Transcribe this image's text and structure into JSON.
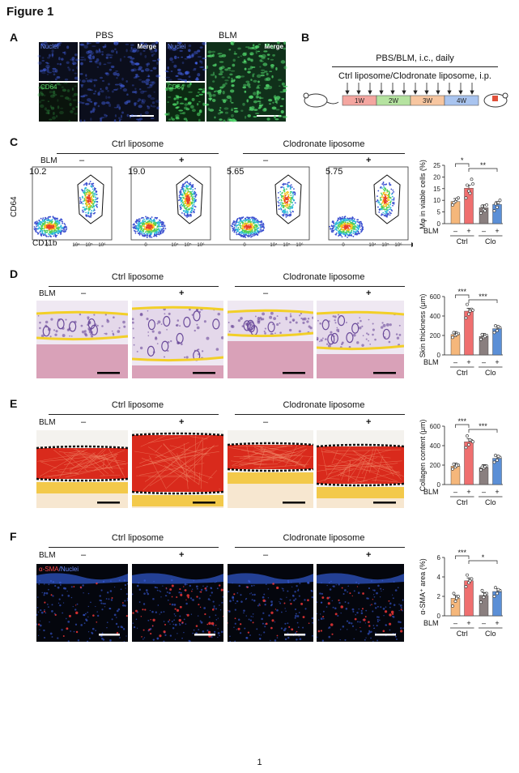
{
  "figure_title": "Figure 1",
  "panels": {
    "A": {
      "label": "A",
      "pbs": "PBS",
      "blm": "BLM",
      "nuclei": "Nuclei",
      "cd64": "CD64",
      "merge": "Merge"
    },
    "B": {
      "label": "B",
      "line1": "PBS/BLM, i.c., daily",
      "line2": "Ctrl liposome/Clodronate liposome, i.p.",
      "weeks": [
        "1W",
        "2W",
        "3W",
        "4W"
      ],
      "week_colors": [
        "#f4a6a0",
        "#b5e3a0",
        "#f7c6a0",
        "#a9c4ef"
      ]
    },
    "C": {
      "label": "C",
      "ctrl": "Ctrl liposome",
      "clo": "Clodronate liposome",
      "blm": "BLM",
      "signs": [
        "–",
        "+",
        "–",
        "+"
      ],
      "gate_values": [
        "10.2",
        "19.0",
        "5.65",
        "5.75"
      ],
      "ylabel": "CD64",
      "xlabel": "CD11b"
    },
    "D": {
      "label": "D",
      "ctrl": "Ctrl liposome",
      "clo": "Clodronate liposome",
      "blm": "BLM",
      "signs": [
        "–",
        "+",
        "–",
        "+"
      ]
    },
    "E": {
      "label": "E",
      "ctrl": "Ctrl liposome",
      "clo": "Clodronate liposome",
      "blm": "BLM",
      "signs": [
        "–",
        "+",
        "–",
        "+"
      ]
    },
    "F": {
      "label": "F",
      "ctrl": "Ctrl liposome",
      "clo": "Clodronate liposome",
      "blm": "BLM",
      "signs": [
        "–",
        "+",
        "–",
        "+"
      ],
      "stain_red": "α-SMA",
      "stain_blue": "/Nuclei"
    }
  },
  "chart_data": [
    {
      "type": "bar",
      "panel": "C",
      "categories": [
        "Ctrl –",
        "Ctrl +",
        "Clo –",
        "Clo +"
      ],
      "values": [
        9.5,
        15.2,
        6.8,
        8.2
      ],
      "points": [
        [
          8.0,
          9.5,
          11.0,
          9.0,
          10.5
        ],
        [
          11.0,
          14.0,
          19.0,
          16.5,
          13.0,
          17.0
        ],
        [
          4.5,
          6.0,
          8.0,
          7.5,
          5.5
        ],
        [
          5.5,
          7.0,
          10.0,
          8.5,
          9.0
        ]
      ],
      "colors": [
        "#f5b77b",
        "#ef6f6f",
        "#8a7f7f",
        "#5b8fd6"
      ],
      "ylabel": "Mφ in viable cells (%)",
      "ylim": [
        0,
        25
      ],
      "yticks": [
        0,
        5,
        10,
        15,
        20,
        25
      ],
      "sig": [
        {
          "pair": [
            0,
            1
          ],
          "text": "*"
        },
        {
          "pair": [
            1,
            3
          ],
          "text": "**"
        }
      ],
      "group_labels": [
        "Ctrl",
        "Clo"
      ],
      "blm_label": "BLM",
      "signs": [
        "–",
        "+",
        "–",
        "+"
      ]
    },
    {
      "type": "bar",
      "panel": "D",
      "categories": [
        "Ctrl –",
        "Ctrl +",
        "Clo –",
        "Clo +"
      ],
      "values": [
        210,
        450,
        190,
        270
      ],
      "points": [
        [
          180,
          200,
          220,
          230,
          210
        ],
        [
          380,
          420,
          470,
          520,
          450,
          460
        ],
        [
          160,
          180,
          200,
          210,
          190
        ],
        [
          230,
          250,
          280,
          300,
          290
        ]
      ],
      "colors": [
        "#f5b77b",
        "#ef6f6f",
        "#8a7f7f",
        "#5b8fd6"
      ],
      "ylabel": "Skin thickness (μm)",
      "ylim": [
        0,
        600
      ],
      "yticks": [
        0,
        200,
        400,
        600
      ],
      "sig": [
        {
          "pair": [
            0,
            1
          ],
          "text": "***"
        },
        {
          "pair": [
            1,
            3
          ],
          "text": "***"
        }
      ],
      "group_labels": [
        "Ctrl",
        "Clo"
      ],
      "blm_label": "BLM",
      "signs": [
        "–",
        "+",
        "–",
        "+"
      ]
    },
    {
      "type": "bar",
      "panel": "E",
      "categories": [
        "Ctrl –",
        "Ctrl +",
        "Clo –",
        "Clo +"
      ],
      "values": [
        190,
        440,
        175,
        270
      ],
      "points": [
        [
          160,
          180,
          200,
          210,
          195
        ],
        [
          380,
          410,
          450,
          500,
          460,
          440
        ],
        [
          150,
          170,
          190,
          180,
          185
        ],
        [
          230,
          250,
          280,
          300,
          290
        ]
      ],
      "colors": [
        "#f5b77b",
        "#ef6f6f",
        "#8a7f7f",
        "#5b8fd6"
      ],
      "ylabel": "Collagen content (μm)",
      "ylim": [
        0,
        600
      ],
      "yticks": [
        0,
        200,
        400,
        600
      ],
      "sig": [
        {
          "pair": [
            0,
            1
          ],
          "text": "***"
        },
        {
          "pair": [
            1,
            3
          ],
          "text": "***"
        }
      ],
      "group_labels": [
        "Ctrl",
        "Clo"
      ],
      "blm_label": "BLM",
      "signs": [
        "–",
        "+",
        "–",
        "+"
      ]
    },
    {
      "type": "bar",
      "panel": "F",
      "categories": [
        "Ctrl –",
        "Ctrl +",
        "Clo –",
        "Clo +"
      ],
      "values": [
        1.8,
        3.6,
        2.1,
        2.5
      ],
      "points": [
        [
          1.0,
          1.5,
          2.0,
          2.3,
          1.8
        ],
        [
          3.0,
          3.4,
          3.8,
          4.2,
          3.6
        ],
        [
          1.4,
          1.9,
          2.3,
          2.6,
          2.2
        ],
        [
          2.0,
          2.3,
          2.6,
          2.9,
          2.7
        ]
      ],
      "colors": [
        "#f5b77b",
        "#ef6f6f",
        "#8a7f7f",
        "#5b8fd6"
      ],
      "ylabel": "α-SMA⁺ area (%)",
      "ylim": [
        0,
        6
      ],
      "yticks": [
        0,
        2,
        4,
        6
      ],
      "sig": [
        {
          "pair": [
            0,
            1
          ],
          "text": "***"
        },
        {
          "pair": [
            1,
            3
          ],
          "text": "*"
        }
      ],
      "group_labels": [
        "Ctrl",
        "Clo"
      ],
      "blm_label": "BLM",
      "signs": [
        "–",
        "+",
        "–",
        "+"
      ]
    }
  ],
  "page_number": "1"
}
